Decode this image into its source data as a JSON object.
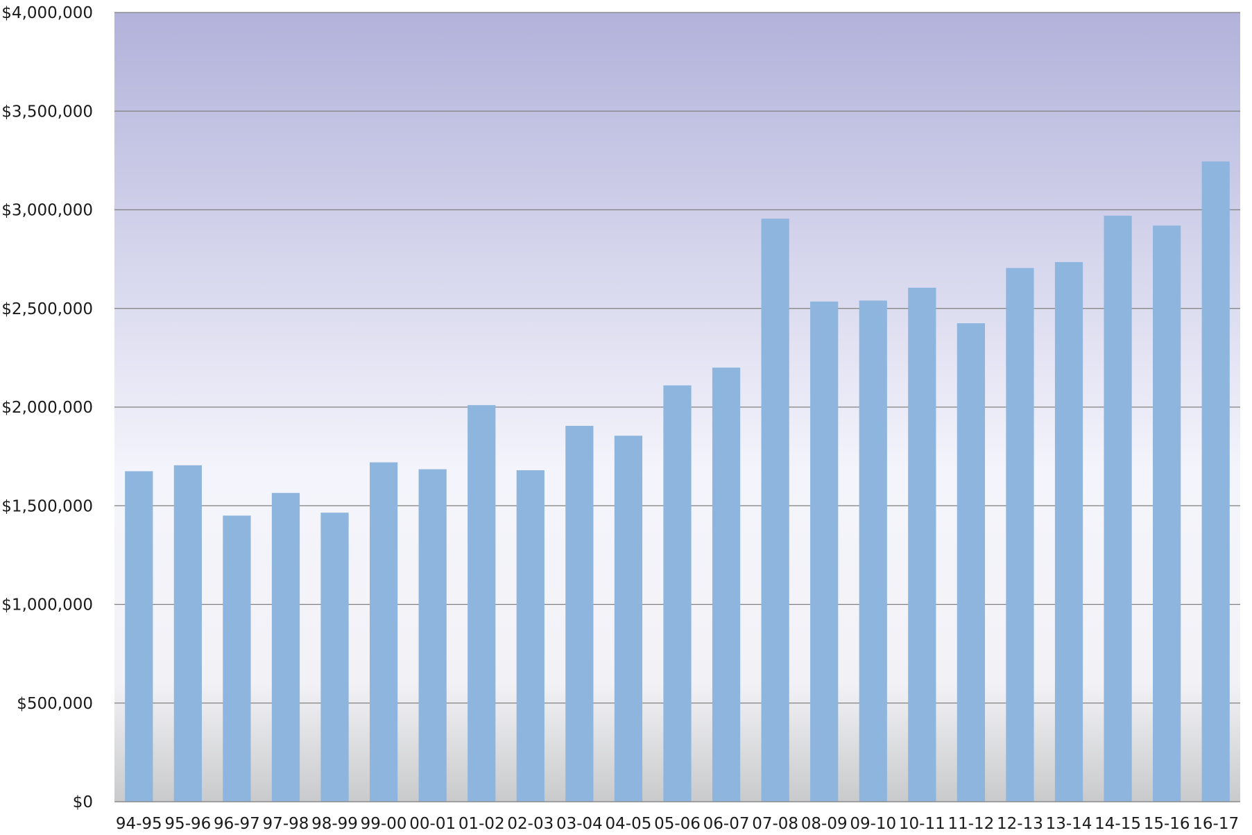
{
  "chart_data": {
    "type": "bar",
    "title": "",
    "xlabel": "",
    "ylabel": "",
    "ylim": [
      0,
      4000000
    ],
    "y_ticks": [
      0,
      500000,
      1000000,
      1500000,
      2000000,
      2500000,
      3000000,
      3500000,
      4000000
    ],
    "y_tick_labels": [
      "$0",
      "$500,000",
      "$1,000,000",
      "$1,500,000",
      "$2,000,000",
      "$2,500,000",
      "$3,000,000",
      "$3,500,000",
      "$4,000,000"
    ],
    "grid": true,
    "legend": "none",
    "categories": [
      "94-95",
      "95-96",
      "96-97",
      "97-98",
      "98-99",
      "99-00",
      "00-01",
      "01-02",
      "02-03",
      "03-04",
      "04-05",
      "05-06",
      "06-07",
      "07-08",
      "08-09",
      "09-10",
      "10-11",
      "11-12",
      "12-13",
      "13-14",
      "14-15",
      "15-16",
      "16-17"
    ],
    "series": [
      {
        "values": [
          1675000,
          1705000,
          1450000,
          1565000,
          1465000,
          1720000,
          1685000,
          2010000,
          1680000,
          1905000,
          1855000,
          2110000,
          2200000,
          2955000,
          2535000,
          2540000,
          2605000,
          2425000,
          2705000,
          2735000,
          2970000,
          2920000,
          3245000
        ]
      }
    ]
  },
  "colors": {
    "bar": "#8db5de",
    "bg_top": "#b2b2db",
    "bg_mid": "#f4f4fc",
    "bg_bottom": "#c9cacb",
    "gridline": "#7f7f7f",
    "axis_text": "#1a1a1a"
  }
}
